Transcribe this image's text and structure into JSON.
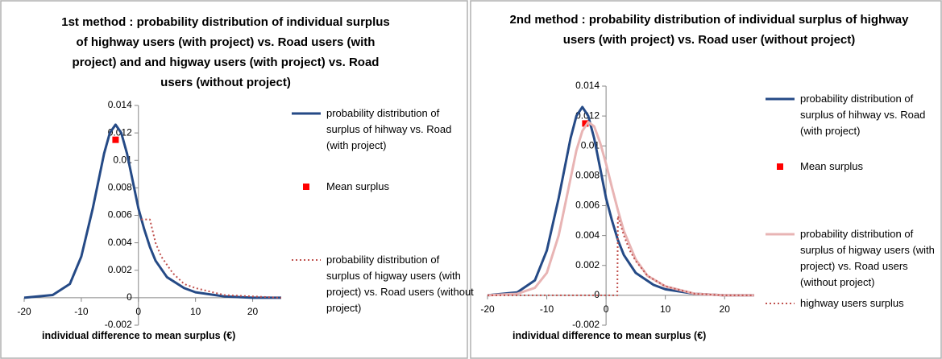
{
  "chart_data": [
    {
      "type": "line",
      "title": "1st method : probability distribution of individual surplus of highway users (with project) vs. Road users (with project) and and higway users (with project) vs. Road users (without project)",
      "x_label": "individual difference to mean surplus (€)",
      "xlim": [
        -20,
        25
      ],
      "xticks": [
        -20,
        -10,
        0,
        10,
        20
      ],
      "ylim": [
        -0.002,
        0.014
      ],
      "yticks": [
        -0.002,
        0,
        0.002,
        0.004,
        0.006,
        0.008,
        0.01,
        0.012,
        0.014
      ],
      "series": [
        {
          "name": "probability distribution of surplus of hihway vs. Road (with project)",
          "color": "#254a86",
          "line_style": "solid",
          "x": [
            -20,
            -15,
            -12,
            -10,
            -8,
            -6,
            -5,
            -4,
            -3,
            -2,
            -1,
            0,
            1,
            2,
            3,
            5,
            8,
            10,
            15,
            20,
            25
          ],
          "values": [
            0,
            0.0002,
            0.001,
            0.003,
            0.0065,
            0.0105,
            0.012,
            0.0126,
            0.012,
            0.0105,
            0.0085,
            0.0065,
            0.005,
            0.0037,
            0.0027,
            0.0015,
            0.0007,
            0.0004,
            0.0001,
            0,
            0
          ]
        },
        {
          "name": "Mean surplus",
          "color": "#ff0000",
          "line_style": "marker",
          "x": [
            -4
          ],
          "values": [
            0.0115
          ]
        },
        {
          "name": "probability distribution of surplus of higway users (with project) vs. Road users (without project)",
          "color": "#c0504d",
          "line_style": "dotted",
          "x": [
            0.5,
            2,
            3,
            4,
            6,
            8,
            10,
            15,
            20,
            25
          ],
          "values": [
            0.0057,
            0.0057,
            0.004,
            0.003,
            0.0018,
            0.001,
            0.0007,
            0.0002,
            0.0001,
            0
          ]
        }
      ]
    },
    {
      "type": "line",
      "title": "2nd method : probability distribution of individual surplus of highway users (with project) vs. Road user (without project)",
      "x_label": "individual difference to mean surplus (€)",
      "xlim": [
        -20,
        25
      ],
      "xticks": [
        -20,
        -10,
        0,
        10,
        20
      ],
      "ylim": [
        -0.002,
        0.014
      ],
      "yticks": [
        -0.002,
        0,
        0.002,
        0.004,
        0.006,
        0.008,
        0.01,
        0.012,
        0.014
      ],
      "series": [
        {
          "name": "probability distribution of surplus of hihway vs. Road (with project)",
          "color": "#254a86",
          "line_style": "solid",
          "x": [
            -20,
            -15,
            -12,
            -10,
            -8,
            -6,
            -5,
            -4,
            -3,
            -2,
            -1,
            0,
            1,
            2,
            3,
            5,
            8,
            10,
            15,
            20,
            25
          ],
          "values": [
            0,
            0.0002,
            0.001,
            0.003,
            0.0065,
            0.0105,
            0.012,
            0.0126,
            0.012,
            0.0105,
            0.0085,
            0.0065,
            0.005,
            0.0037,
            0.0027,
            0.0015,
            0.0007,
            0.0004,
            0.0001,
            0,
            0
          ]
        },
        {
          "name": "Mean surplus",
          "color": "#ff0000",
          "line_style": "marker",
          "x": [
            -3.5
          ],
          "values": [
            0.0115
          ]
        },
        {
          "name": "probability distribution of surplus of higway users (with project) vs. Road users (without project)",
          "color": "#e8b4b4",
          "line_style": "solid",
          "x": [
            -20,
            -15,
            -12,
            -10,
            -8,
            -6,
            -5,
            -4,
            -3,
            -2,
            -1,
            0,
            1,
            2,
            3,
            5,
            7,
            10,
            15,
            20,
            25
          ],
          "values": [
            0,
            0.0001,
            0.0005,
            0.0015,
            0.004,
            0.0078,
            0.0097,
            0.011,
            0.0116,
            0.0113,
            0.0102,
            0.0088,
            0.0072,
            0.0057,
            0.0043,
            0.0024,
            0.0013,
            0.0006,
            0.0001,
            0,
            0
          ]
        },
        {
          "name": "highway users surplus",
          "color": "#c0504d",
          "line_style": "dotted",
          "x": [
            -20,
            1.9,
            2,
            3,
            4,
            5,
            7,
            10,
            15,
            20,
            25
          ],
          "values": [
            0,
            0,
            0.0053,
            0.004,
            0.003,
            0.0023,
            0.0013,
            0.0006,
            0.0001,
            0,
            0
          ]
        }
      ]
    }
  ]
}
